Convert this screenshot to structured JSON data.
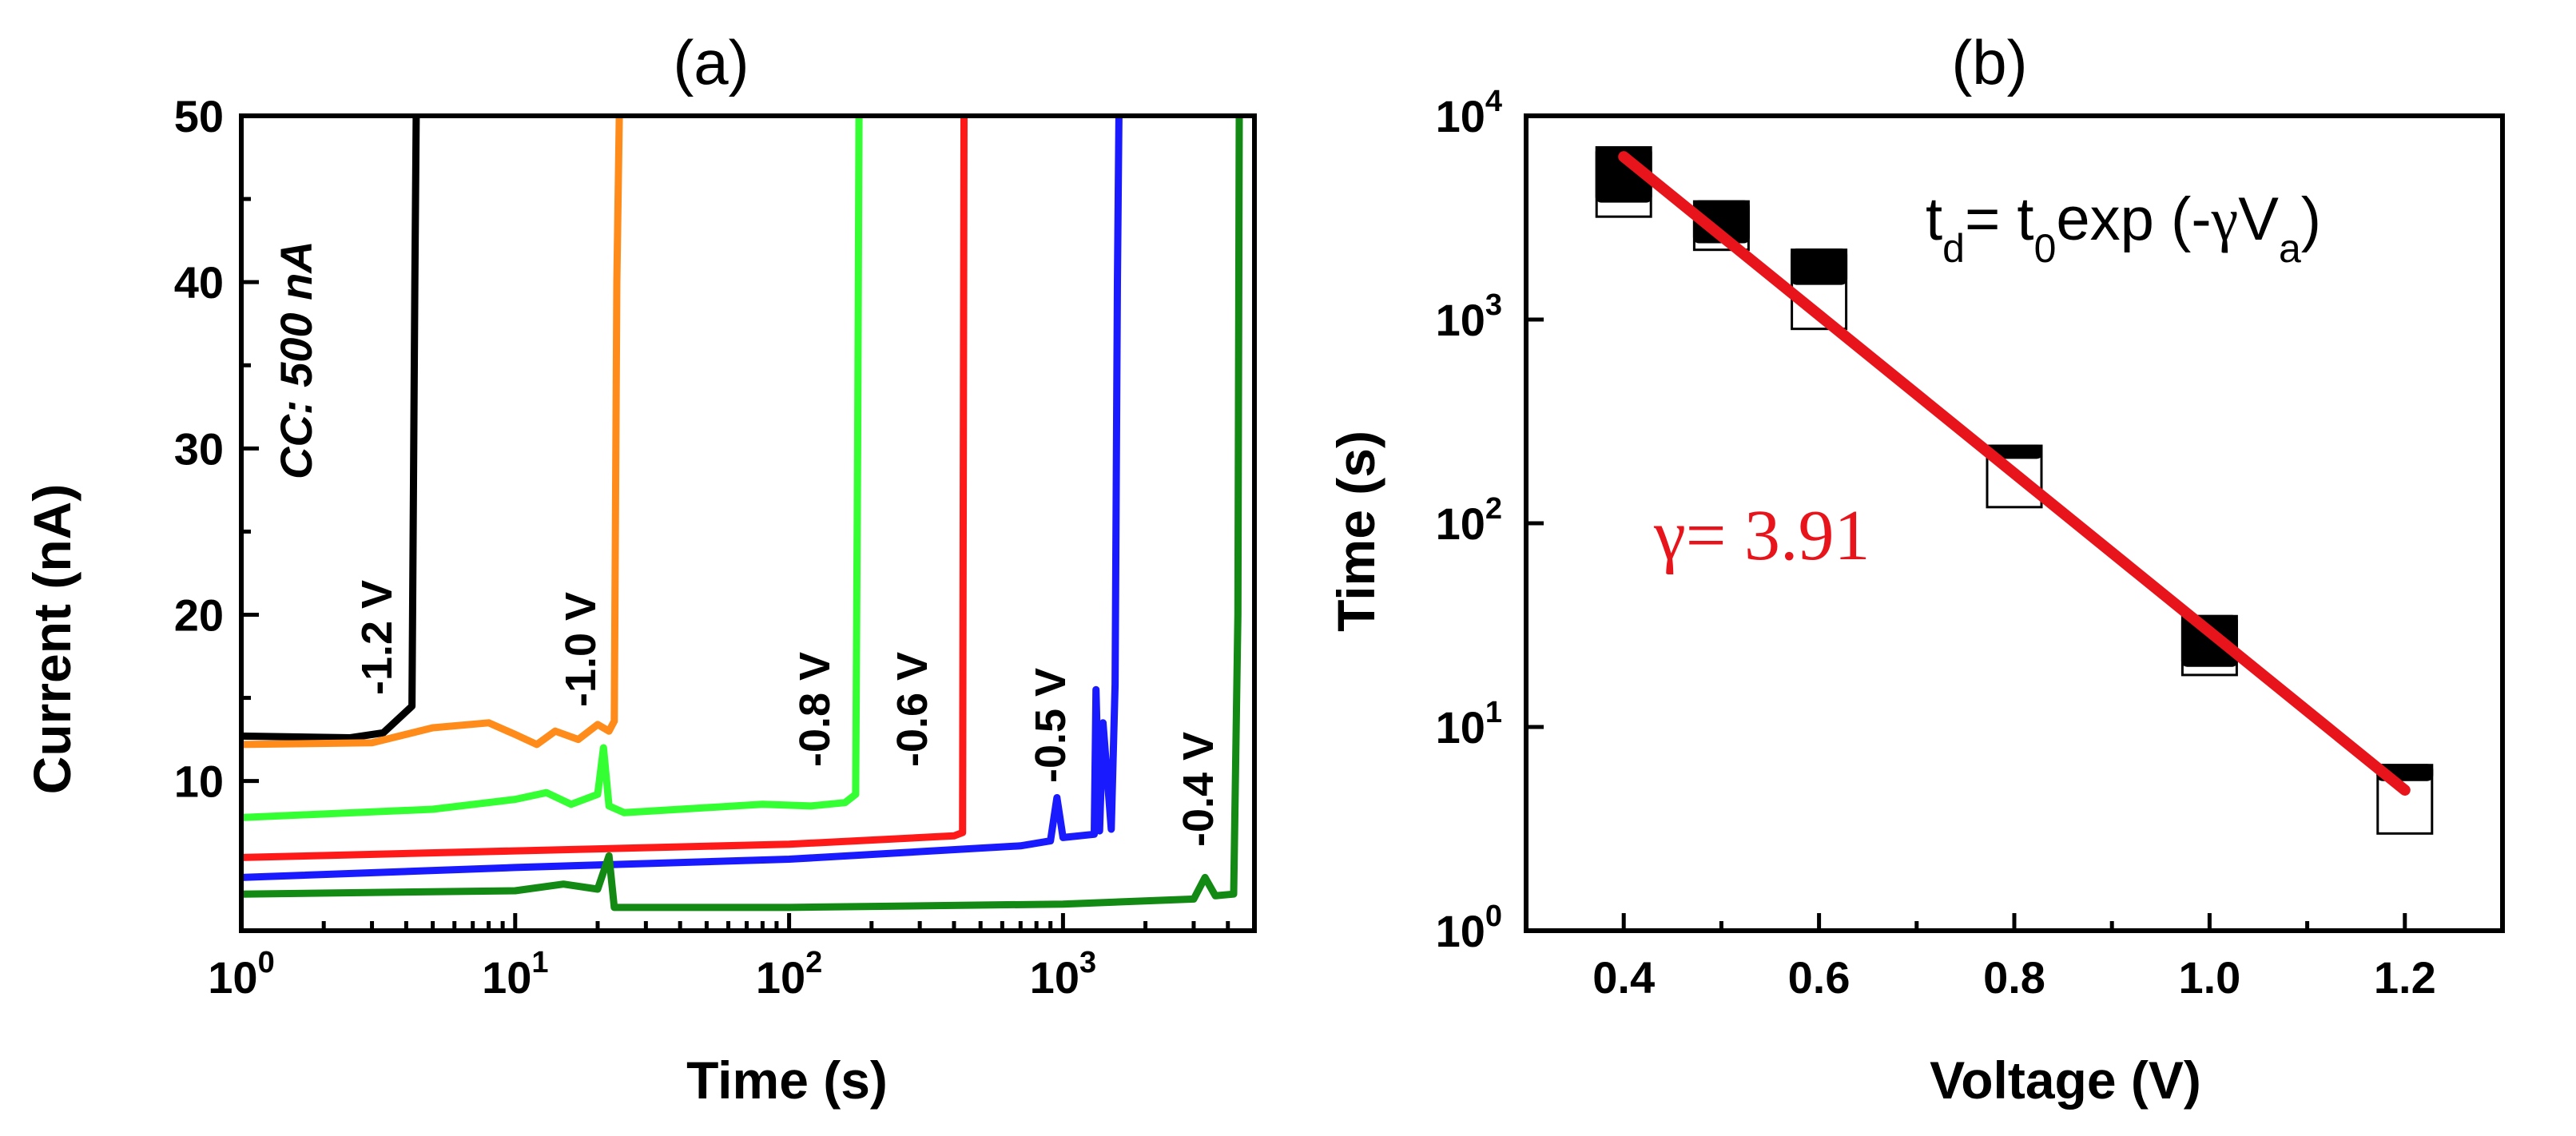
{
  "chart_data": [
    {
      "panel": "(a)",
      "type": "line",
      "title": "(a)",
      "xlabel": "Time (s)",
      "ylabel": "Current (nA)",
      "xscale": "log",
      "xlim": [
        1,
        5000
      ],
      "ylim": [
        1,
        50
      ],
      "xticks": [
        1,
        10,
        100,
        1000
      ],
      "xtick_labels": [
        {
          "base": "10",
          "exp": "0"
        },
        {
          "base": "10",
          "exp": "1"
        },
        {
          "base": "10",
          "exp": "2"
        },
        {
          "base": "10",
          "exp": "3"
        }
      ],
      "yticks": [
        10,
        20,
        30,
        40,
        50
      ],
      "ytick_labels": [
        "10",
        "20",
        "30",
        "40",
        "50"
      ],
      "annotation": "CC: 500 nA",
      "series": [
        {
          "name": "-1.2 V",
          "color": "#000000",
          "x": [
            1,
            2.5,
            3.3,
            4.2,
            4.3,
            4.35
          ],
          "y": [
            12.7,
            12.6,
            12.9,
            14.5,
            40,
            50
          ]
        },
        {
          "name": "-1.0 V",
          "color": "#ff8c1a",
          "x": [
            1,
            3,
            5,
            8,
            10,
            12,
            14,
            17,
            20,
            22,
            23,
            23.5,
            24
          ],
          "y": [
            12.2,
            12.3,
            13.2,
            13.5,
            12.8,
            12.2,
            13.0,
            12.5,
            13.4,
            13.0,
            13.6,
            40,
            50
          ]
        },
        {
          "name": "-0.8 V",
          "color": "#33ff33",
          "x": [
            1,
            5,
            10,
            13,
            16,
            20,
            21,
            22,
            25,
            40,
            80,
            120,
            160,
            175,
            178,
            180
          ],
          "y": [
            7.8,
            8.3,
            8.9,
            9.3,
            8.6,
            9.2,
            12.0,
            8.5,
            8.1,
            8.3,
            8.6,
            8.5,
            8.7,
            9.2,
            30,
            50
          ]
        },
        {
          "name": "-0.6 V",
          "color": "#ff1a1a",
          "x": [
            1,
            10,
            100,
            400,
            430,
            435
          ],
          "y": [
            5.4,
            5.8,
            6.2,
            6.7,
            6.9,
            50
          ]
        },
        {
          "name": "-0.5 V",
          "color": "#1a1aff",
          "x": [
            1,
            10,
            100,
            700,
            900,
            950,
            1000,
            1300,
            1320,
            1360,
            1400,
            1500,
            1550,
            1580,
            1600
          ],
          "y": [
            4.2,
            4.8,
            5.3,
            6.1,
            6.4,
            9.0,
            6.6,
            6.8,
            15.5,
            7.0,
            13.5,
            7.1,
            15.8,
            40,
            50
          ]
        },
        {
          "name": "-0.4 V",
          "color": "#138a13",
          "x": [
            1,
            10,
            15,
            20,
            22,
            23,
            30,
            100,
            1000,
            3000,
            3300,
            3600,
            4200,
            4350,
            4400
          ],
          "y": [
            3.2,
            3.4,
            3.8,
            3.5,
            5.5,
            2.4,
            2.4,
            2.4,
            2.6,
            2.9,
            4.2,
            3.1,
            3.2,
            20,
            50
          ]
        }
      ],
      "curve_labels": [
        "-1.2 V",
        "-1.0 V",
        "-0.8 V",
        "-0.6 V",
        "-0.5 V",
        "-0.4 V"
      ]
    },
    {
      "panel": "(b)",
      "type": "scatter",
      "title": "(b)",
      "xlabel": "Voltage (V)",
      "ylabel": "Time (s)",
      "yscale": "log",
      "xlim": [
        0.3,
        1.3
      ],
      "ylim": [
        1,
        10000
      ],
      "xticks": [
        0.4,
        0.6,
        0.8,
        1.0,
        1.2
      ],
      "xtick_labels": [
        "0.4",
        "0.6",
        "0.8",
        "1.0",
        "1.2"
      ],
      "yticks": [
        1,
        10,
        100,
        1000,
        10000
      ],
      "ytick_labels": [
        {
          "base": "10",
          "exp": "0"
        },
        {
          "base": "10",
          "exp": "1"
        },
        {
          "base": "10",
          "exp": "2"
        },
        {
          "base": "10",
          "exp": "3"
        },
        {
          "base": "10",
          "exp": "4"
        }
      ],
      "boxes": [
        {
          "x": 0.4,
          "q1": 3200,
          "q3": 7000,
          "lower": 3800
        },
        {
          "x": 0.5,
          "q1": 2200,
          "q3": 3800,
          "lower": 2400
        },
        {
          "x": 0.6,
          "q1": 900,
          "q3": 2200,
          "lower": 1500
        },
        {
          "x": 0.8,
          "q1": 120,
          "q3": 240,
          "lower": 210
        },
        {
          "x": 1.0,
          "q1": 18,
          "q3": 35,
          "lower": 20
        },
        {
          "x": 1.2,
          "q1": 3,
          "q3": 6.5,
          "lower": 5.5
        }
      ],
      "fit": {
        "color": "#e8141c",
        "x": [
          0.4,
          1.2
        ],
        "y": [
          6300,
          4.9
        ],
        "gamma": 3.91
      },
      "equation": {
        "t": "t",
        "d": "d",
        "eq": "= t",
        "zero": "0",
        "exp": "exp (-",
        "gamma_sym": "γ",
        "V": "V",
        "a": "a",
        "close": ")"
      },
      "gamma_label": "γ= 3.91"
    }
  ]
}
